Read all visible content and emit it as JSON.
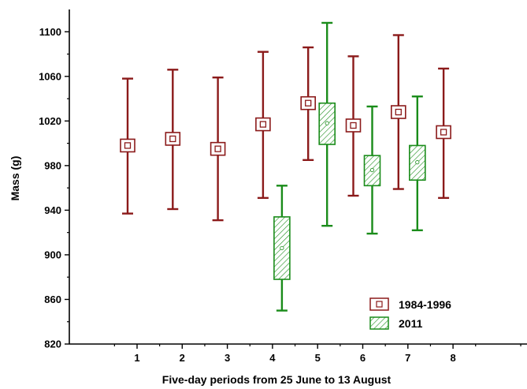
{
  "chart_data": {
    "type": "box",
    "xlabel": "Five-day periods from 25 June to 13 August",
    "ylabel": "Mass (g)",
    "ylim": [
      820,
      1120
    ],
    "yticks": [
      820,
      860,
      900,
      940,
      980,
      1020,
      1060,
      1100
    ],
    "categories": [
      "1",
      "2",
      "3",
      "4",
      "5",
      "6",
      "7",
      "8"
    ],
    "legend_position": "bottom-right",
    "series": [
      {
        "name": "1984-1996",
        "color": "#8b1a1a",
        "style": "mean-square",
        "points": [
          {
            "period": 1,
            "mean": 998,
            "low": 937,
            "high": 1058
          },
          {
            "period": 2,
            "mean": 1004,
            "low": 941,
            "high": 1066
          },
          {
            "period": 3,
            "mean": 995,
            "low": 931,
            "high": 1059
          },
          {
            "period": 4,
            "mean": 1017,
            "low": 951,
            "high": 1082
          },
          {
            "period": 5,
            "mean": 1036,
            "low": 985,
            "high": 1086
          },
          {
            "period": 6,
            "mean": 1016,
            "low": 953,
            "high": 1078
          },
          {
            "period": 7,
            "mean": 1028,
            "low": 959,
            "high": 1097
          },
          {
            "period": 8,
            "mean": 1010,
            "low": 951,
            "high": 1067
          }
        ]
      },
      {
        "name": "2011",
        "color": "#1a8c1a",
        "style": "hatched-box",
        "points": [
          {
            "period": 4,
            "mean": 906,
            "box_low": 878,
            "box_high": 934,
            "low": 850,
            "high": 962
          },
          {
            "period": 5,
            "mean": 1018,
            "box_low": 999,
            "box_high": 1036,
            "low": 926,
            "high": 1108
          },
          {
            "period": 6,
            "mean": 976,
            "box_low": 962,
            "box_high": 989,
            "low": 919,
            "high": 1033
          },
          {
            "period": 7,
            "mean": 983,
            "box_low": 967,
            "box_high": 998,
            "low": 922,
            "high": 1042
          }
        ]
      }
    ]
  }
}
